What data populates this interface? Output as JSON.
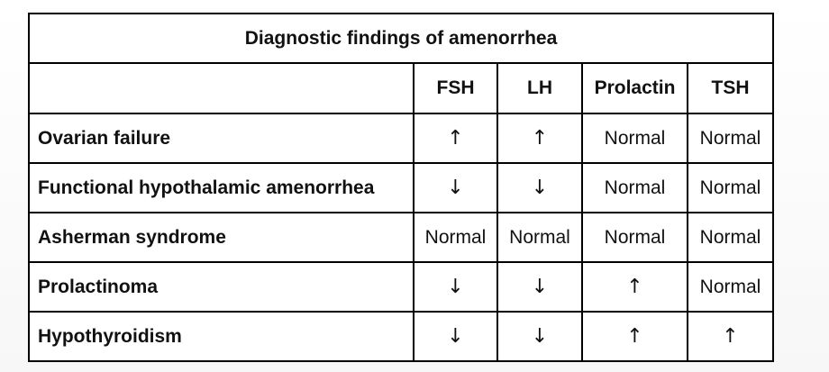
{
  "table": {
    "title": "Diagnostic findings of amenorrhea",
    "columns": [
      "",
      "FSH",
      "LH",
      "Prolactin",
      "TSH"
    ],
    "rows": [
      {
        "label": "Ovarian failure",
        "cells": [
          "↑",
          "↑",
          "Normal",
          "Normal"
        ]
      },
      {
        "label": "Functional hypothalamic amenorrhea",
        "cells": [
          "↓",
          "↓",
          "Normal",
          "Normal"
        ]
      },
      {
        "label": "Asherman syndrome",
        "cells": [
          "Normal",
          "Normal",
          "Normal",
          "Normal"
        ]
      },
      {
        "label": "Prolactinoma",
        "cells": [
          "↓",
          "↓",
          "↑",
          "Normal"
        ]
      },
      {
        "label": "Hypothyroidism",
        "cells": [
          "↓",
          "↓",
          "↑",
          "↑"
        ]
      }
    ]
  }
}
